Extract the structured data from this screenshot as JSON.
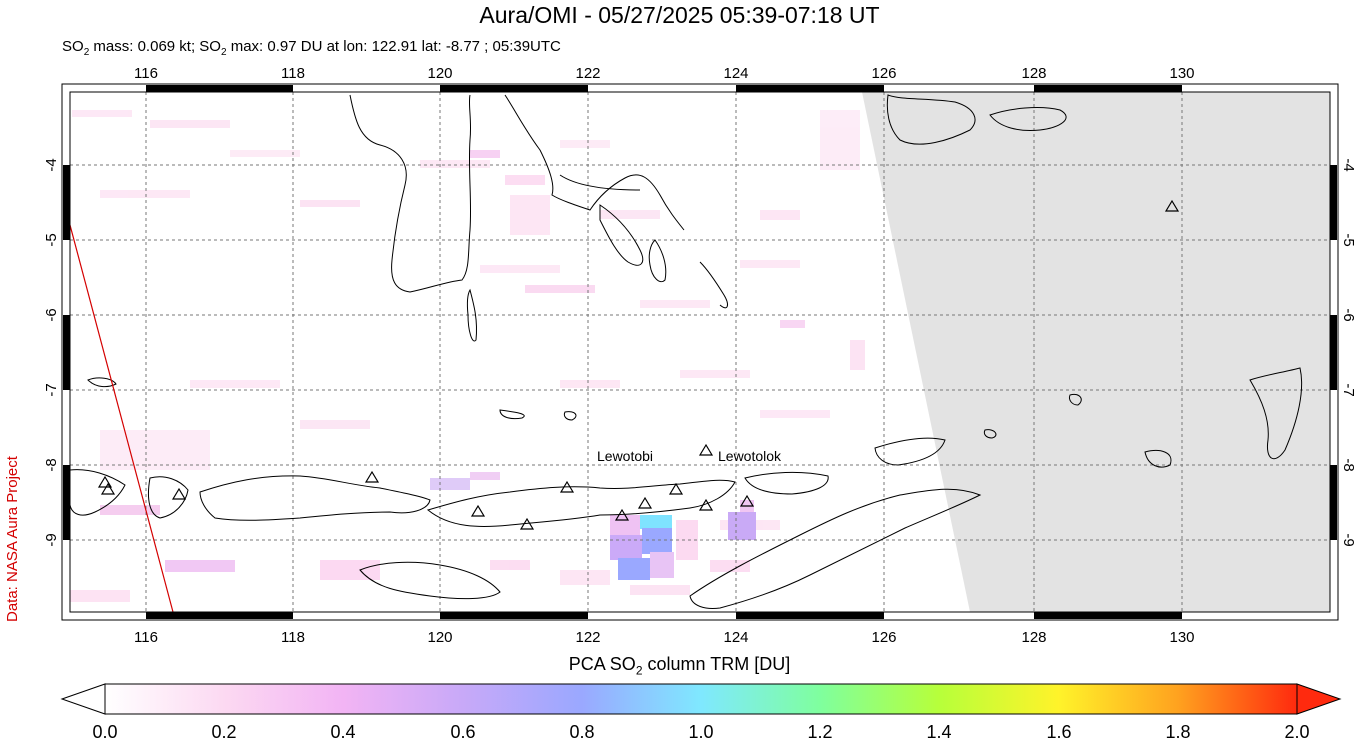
{
  "title": "Aura/OMI - 05/27/2025 05:39-07:18 UT",
  "subtitle": {
    "mass_prefix": "SO",
    "mass_sub": "2",
    "mass_text": " mass: 0.069 kt; SO",
    "max_sub": "2",
    "max_text": " max: 0.97 DU at lon: 122.91 lat: -8.77 ; 05:39UTC"
  },
  "credit": "Data: NASA Aura Project",
  "map": {
    "lon_range": [
      114.9,
      131.9
    ],
    "lat_range": [
      -10.05,
      -3.0
    ],
    "lon_ticks": [
      "116",
      "118",
      "120",
      "122",
      "124",
      "126",
      "128",
      "130"
    ],
    "lat_ticks": [
      "-4",
      "-5",
      "-6",
      "-7",
      "-8",
      "-9"
    ],
    "no_data_color": "#e3e3e3",
    "grid": "dashed",
    "volcanoes": [
      {
        "name": "Lewotobi",
        "lon": 122.78,
        "lat": -8.53
      },
      {
        "name": "Lewotolok",
        "lon": 123.51,
        "lat": -8.27
      }
    ],
    "volcano_label_lewotobi": "Lewotobi",
    "volcano_label_lewotolok": "Lewotolok"
  },
  "colorbar": {
    "label_prefix": "PCA SO",
    "label_sub": "2",
    "label_suffix": " column TRM [DU]",
    "min": 0.0,
    "max": 2.0,
    "ticks": [
      "0.0",
      "0.2",
      "0.4",
      "0.6",
      "0.8",
      "1.0",
      "1.2",
      "1.4",
      "1.6",
      "1.8",
      "2.0"
    ],
    "colors": [
      "#ffffff",
      "#fcd9f2",
      "#f2b4f4",
      "#c8a9f8",
      "#9aa8ff",
      "#7fe8ff",
      "#7fff9e",
      "#b7ff3a",
      "#fff32a",
      "#ffa21f",
      "#ff2a0e"
    ]
  }
}
